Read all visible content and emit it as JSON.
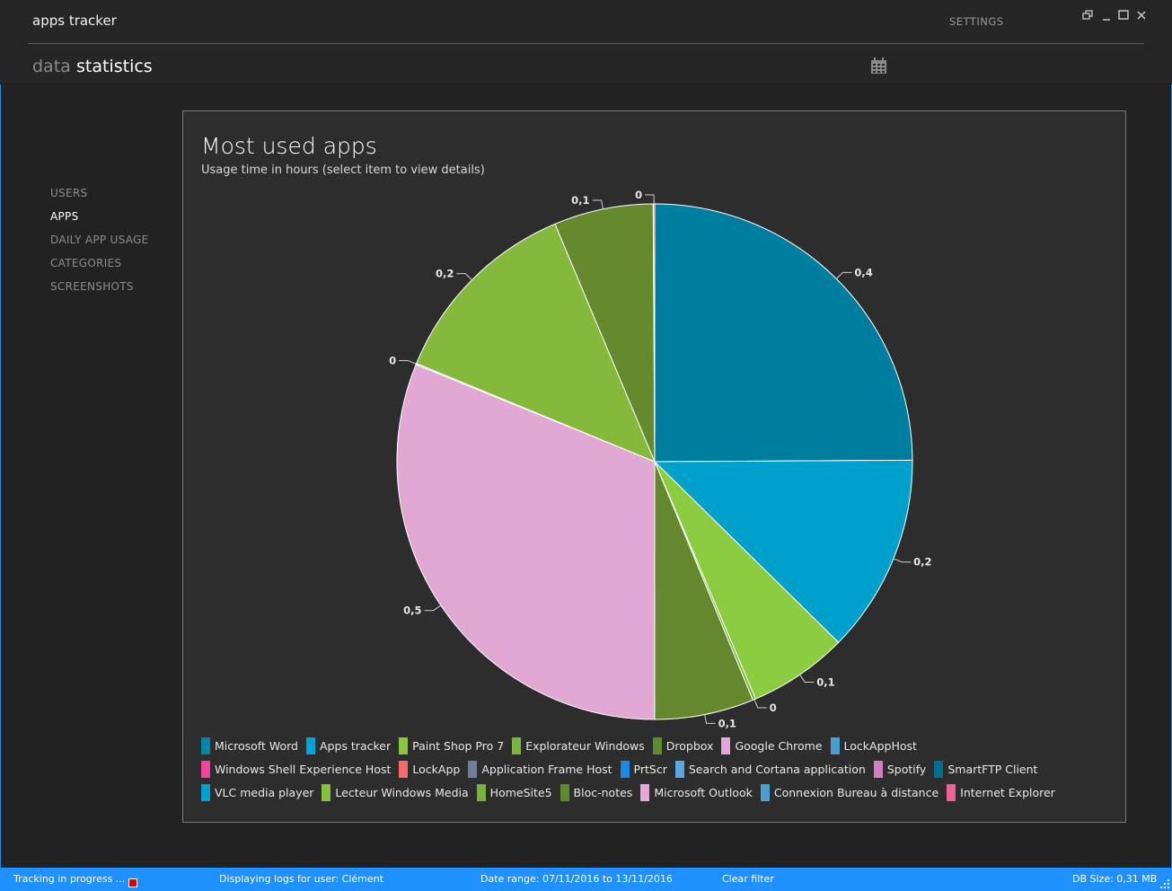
{
  "window": {
    "title": "apps tracker",
    "settings_label": "SETTINGS",
    "controls": [
      "restore-icon",
      "minimize-icon",
      "maximize-icon",
      "close-icon"
    ]
  },
  "nav": {
    "data_label": "data",
    "statistics_label": "statistics",
    "calendar_icon": "calendar-icon"
  },
  "sidebar": {
    "items": [
      {
        "label": "USERS",
        "active": false
      },
      {
        "label": "APPS",
        "active": true
      },
      {
        "label": "DAILY APP USAGE",
        "active": false
      },
      {
        "label": "CATEGORIES",
        "active": false
      },
      {
        "label": "SCREENSHOTS",
        "active": false
      }
    ]
  },
  "panel": {
    "title": "Most used apps",
    "subtitle": "Usage time in hours (select item to view details)"
  },
  "chart_data": {
    "type": "pie",
    "title": "Most used apps",
    "subtitle": "Usage time in hours (select item to view details)",
    "slices": [
      {
        "label": "Microsoft Word",
        "value": 0.4,
        "value_label": "0,4",
        "color": "#007ea0"
      },
      {
        "label": "Apps tracker",
        "value": 0.2,
        "value_label": "0,2",
        "color": "#00a0cc"
      },
      {
        "label": "Paint Shop Pro 7",
        "value": 0.1,
        "value_label": "0,1",
        "color": "#8ccc40"
      },
      {
        "label": "Explorateur Windows",
        "value": 0.003,
        "value_label": "0",
        "color": "#7fb63a"
      },
      {
        "label": "Dropbox",
        "value": 0.1,
        "value_label": "0,1",
        "color": "#64882e"
      },
      {
        "label": "Google Chrome",
        "value": 0.5,
        "value_label": "0,5",
        "color": "#e2a8d4"
      },
      {
        "label": "LockAppHost",
        "value": 0.0012,
        "value_label": "0",
        "color": "#4a9fd0"
      },
      {
        "label": "Lecteur Windows Media",
        "value": 0.2,
        "value_label": "0,2",
        "color": "#84b93c"
      },
      {
        "label": "Bloc-notes",
        "value": 0.1,
        "value_label": "0,1",
        "color": "#658a2e"
      },
      {
        "label": "Windows Shell Experience Host",
        "value": 0.0015,
        "value_label": "0",
        "color": "#f06090"
      }
    ],
    "legend": [
      {
        "label": "Microsoft Word",
        "color": "#0086a8"
      },
      {
        "label": "Apps tracker",
        "color": "#00a4d8"
      },
      {
        "label": "Paint Shop Pro 7",
        "color": "#8cc63f"
      },
      {
        "label": "Explorateur Windows",
        "color": "#7ab63e"
      },
      {
        "label": "Dropbox",
        "color": "#5d8a2c"
      },
      {
        "label": "Google Chrome",
        "color": "#e4a8d8"
      },
      {
        "label": "LockAppHost",
        "color": "#4a9fd0"
      },
      {
        "label": "Windows Shell Experience Host",
        "color": "#f2449a"
      },
      {
        "label": "LockApp",
        "color": "#f56a6a"
      },
      {
        "label": "Application Frame Host",
        "color": "#6e7f99"
      },
      {
        "label": "PrtScr",
        "color": "#1e88e5"
      },
      {
        "label": "Search and Cortana application",
        "color": "#5ba6e0"
      },
      {
        "label": "Spotify",
        "color": "#d27fc4"
      },
      {
        "label": "SmartFTP Client",
        "color": "#006f8f"
      },
      {
        "label": "VLC media player",
        "color": "#00a0d0"
      },
      {
        "label": "Lecteur Windows Media",
        "color": "#86bf3a"
      },
      {
        "label": "HomeSite5",
        "color": "#7ab23c"
      },
      {
        "label": "Bloc-notes",
        "color": "#5e8a2e"
      },
      {
        "label": "Microsoft Outlook",
        "color": "#e6a6d8"
      },
      {
        "label": "Connexion Bureau à distance",
        "color": "#4a9fd0"
      },
      {
        "label": "Internet Explorer",
        "color": "#f06292"
      }
    ]
  },
  "status": {
    "tracking": "Tracking in progress ...",
    "user": "Displaying logs for user: Clément",
    "range": "Date range: 07/11/2016 to 13/11/2016",
    "clear": "Clear filter",
    "db": "DB Size: 0,31 MB"
  }
}
